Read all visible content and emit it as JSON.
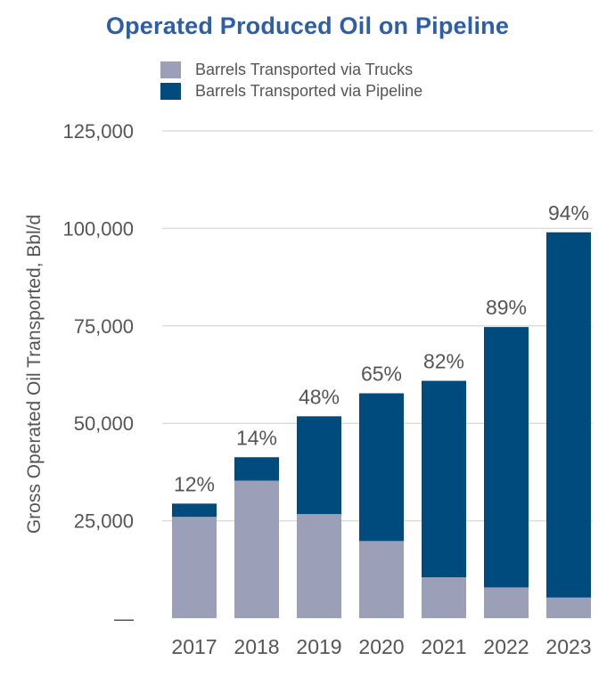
{
  "chart_data": {
    "type": "bar",
    "stacked": true,
    "title": "Operated Produced Oil on Pipeline",
    "ylabel": "Gross Operated Oil Transported, Bbl/d",
    "xlabel": "",
    "categories": [
      "2017",
      "2018",
      "2019",
      "2020",
      "2021",
      "2022",
      "2023"
    ],
    "series": [
      {
        "name": "Barrels Transported via Trucks",
        "color": "#9B9FB8",
        "values": [
          26000,
          35300,
          26700,
          19800,
          10500,
          7900,
          5300
        ]
      },
      {
        "name": "Barrels Transported via Pipeline",
        "color": "#004B7D",
        "values": [
          3400,
          6000,
          25100,
          37900,
          50400,
          66800,
          93700
        ]
      }
    ],
    "data_labels": [
      "12%",
      "14%",
      "48%",
      "65%",
      "82%",
      "89%",
      "94%"
    ],
    "ylim": [
      0,
      125000
    ],
    "yticks": [
      0,
      25000,
      50000,
      75000,
      100000,
      125000
    ],
    "ytick_labels": [
      "—",
      "25,000",
      "50,000",
      "75,000",
      "100,000",
      "125,000"
    ],
    "grid": true,
    "legend_position": "top-left"
  }
}
